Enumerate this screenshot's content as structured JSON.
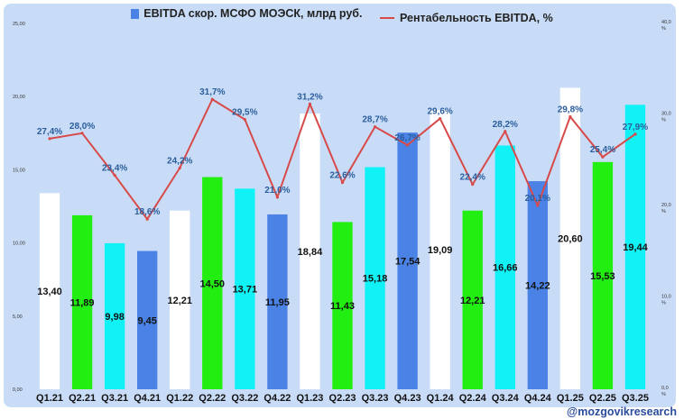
{
  "chart_data": {
    "type": "bar",
    "title": "",
    "categories": [
      "Q1.21",
      "Q2.21",
      "Q3.21",
      "Q4.21",
      "Q1.22",
      "Q2.22",
      "Q3.22",
      "Q4.22",
      "Q1.23",
      "Q2.23",
      "Q3.23",
      "Q4.23",
      "Q1.24",
      "Q2.24",
      "Q3.24",
      "Q4.24",
      "Q1.25",
      "Q2.25",
      "Q3.25"
    ],
    "series": [
      {
        "name": "EBITDA скор. МСФО МОЭСК, млрд руб.",
        "kind": "bar",
        "axis": "left",
        "values": [
          13.4,
          11.89,
          9.98,
          9.45,
          12.21,
          14.5,
          13.71,
          11.95,
          18.84,
          11.43,
          15.18,
          17.54,
          19.09,
          12.21,
          16.66,
          14.22,
          20.6,
          15.53,
          19.44
        ],
        "labels": [
          "13,40",
          "11,89",
          "9,98",
          "9,45",
          "12,21",
          "14,50",
          "13,71",
          "11,95",
          "18,84",
          "11,43",
          "15,18",
          "17,54",
          "19,09",
          "12,21",
          "16,66",
          "14,22",
          "20,60",
          "15,53",
          "19,44"
        ]
      },
      {
        "name": "Рентабельность EBITDA, %",
        "kind": "line",
        "axis": "right",
        "values": [
          27.4,
          28.0,
          23.4,
          18.6,
          24.2,
          31.7,
          29.5,
          21.0,
          31.2,
          22.6,
          28.7,
          26.7,
          29.6,
          22.4,
          28.2,
          20.1,
          29.8,
          25.4,
          27.9
        ],
        "labels": [
          "27,4%",
          "28,0%",
          "23,4%",
          "18,6%",
          "24,2%",
          "31,7%",
          "29,5%",
          "21,0%",
          "31,2%",
          "22,6%",
          "28,7%",
          "26,7%",
          "29,6%",
          "22,4%",
          "28,2%",
          "20,1%",
          "29,8%",
          "25,4%",
          "27,9%"
        ]
      }
    ],
    "ylim": [
      0,
      25
    ],
    "y2lim": [
      0,
      40
    ],
    "y_ticks": [
      "0,00",
      "5,00",
      "10,00",
      "15,00",
      "20,00",
      "25,00"
    ],
    "y2_ticks": [
      "0,0 %",
      "10,0 %",
      "20,0 %",
      "30,0 %",
      "40,0 %"
    ],
    "grid": false,
    "legend": "top"
  },
  "colors": {
    "quarter_bars": {
      "Q1": "#ffffff",
      "Q2": "#22ee11",
      "Q3": "#11f2f7",
      "Q4": "#4a82e6"
    },
    "line": "#d84a4a",
    "legend_bar": "#4a82e6",
    "panel": "#c9dcf7"
  },
  "legend": {
    "bar_label": "EBITDA скор. МСФО МОЭСК, млрд руб.",
    "line_label": "Рентабельность EBITDA, %"
  },
  "watermark": "@mozgovikresearch"
}
